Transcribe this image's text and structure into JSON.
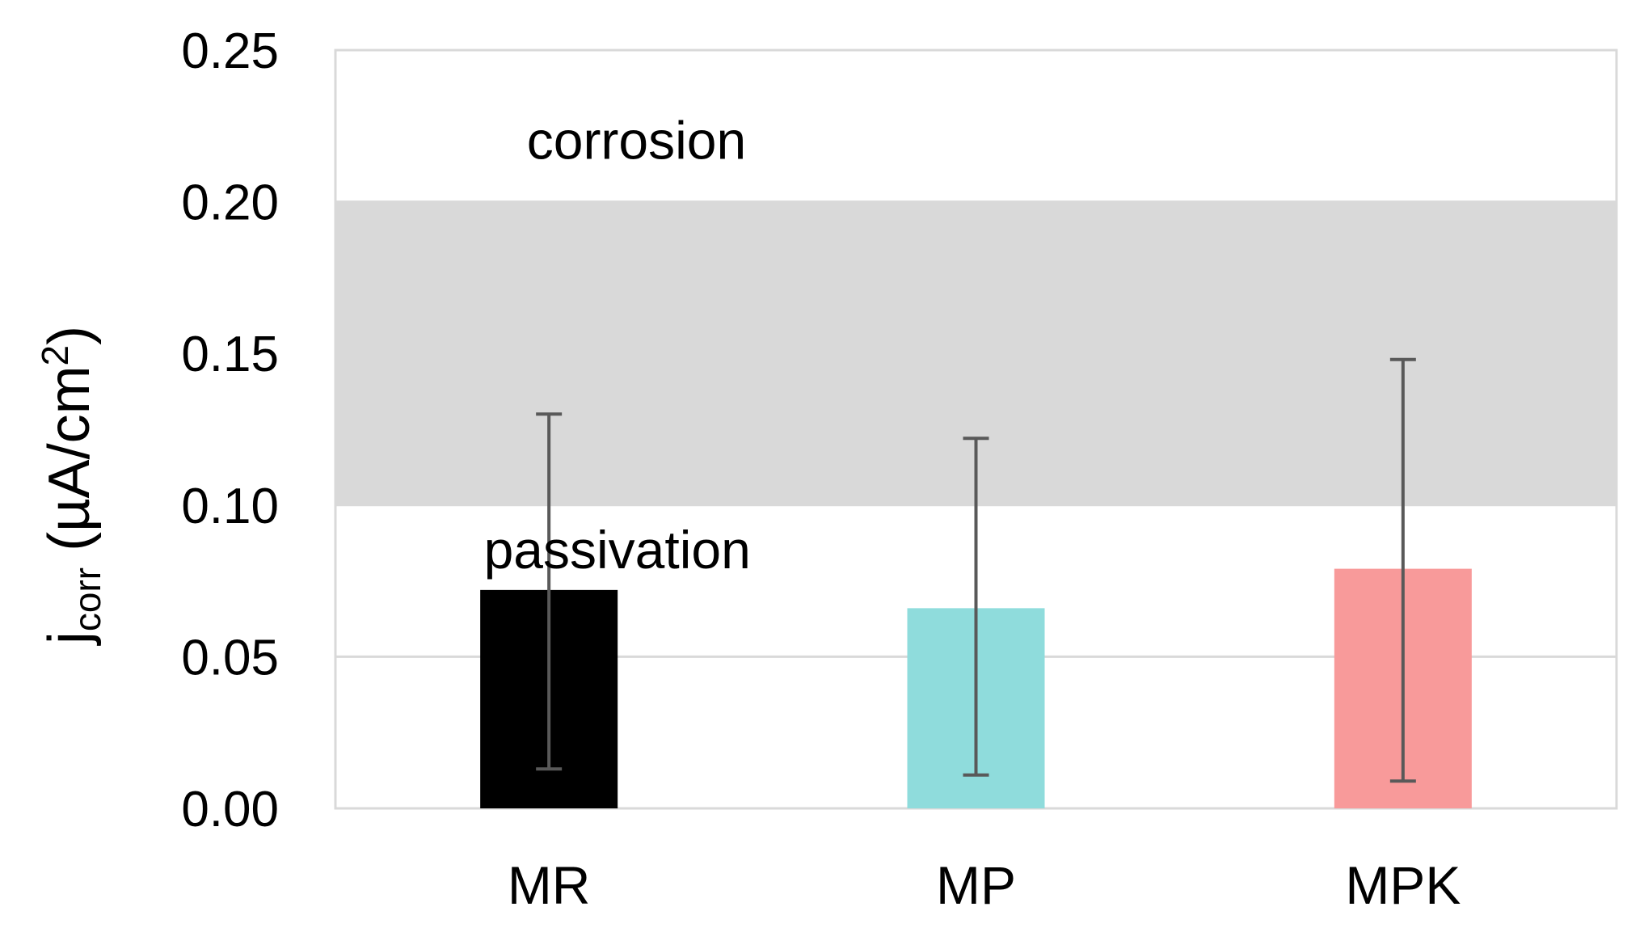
{
  "chart_data": {
    "type": "bar",
    "categories": [
      "MR",
      "MP",
      "MPK"
    ],
    "values": [
      0.072,
      0.066,
      0.079
    ],
    "error_low": [
      0.013,
      0.011,
      0.009
    ],
    "error_high": [
      0.13,
      0.122,
      0.148
    ],
    "colors": [
      "#000000",
      "#8fdcdc",
      "#f89a9a"
    ],
    "ylabel": {
      "main": "j",
      "sub": "corr",
      "rest": " (µA/cm",
      "sup": "2",
      "end": ")"
    },
    "ylim": [
      0,
      0.25
    ],
    "yticks": [
      "0.00",
      "0.05",
      "0.10",
      "0.15",
      "0.20",
      "0.25"
    ],
    "ytick_values": [
      0,
      0.05,
      0.1,
      0.15,
      0.2,
      0.25
    ],
    "grid": true,
    "band": {
      "from": 0.1,
      "to": 0.2,
      "color": "#d9d9d9"
    },
    "annotations": {
      "above": "corrosion",
      "below": "passivation"
    },
    "annotation_values": {
      "above": 0.22,
      "below": 0.085
    },
    "annotation_x": {
      "above": 0.235,
      "below": 0.22
    }
  }
}
